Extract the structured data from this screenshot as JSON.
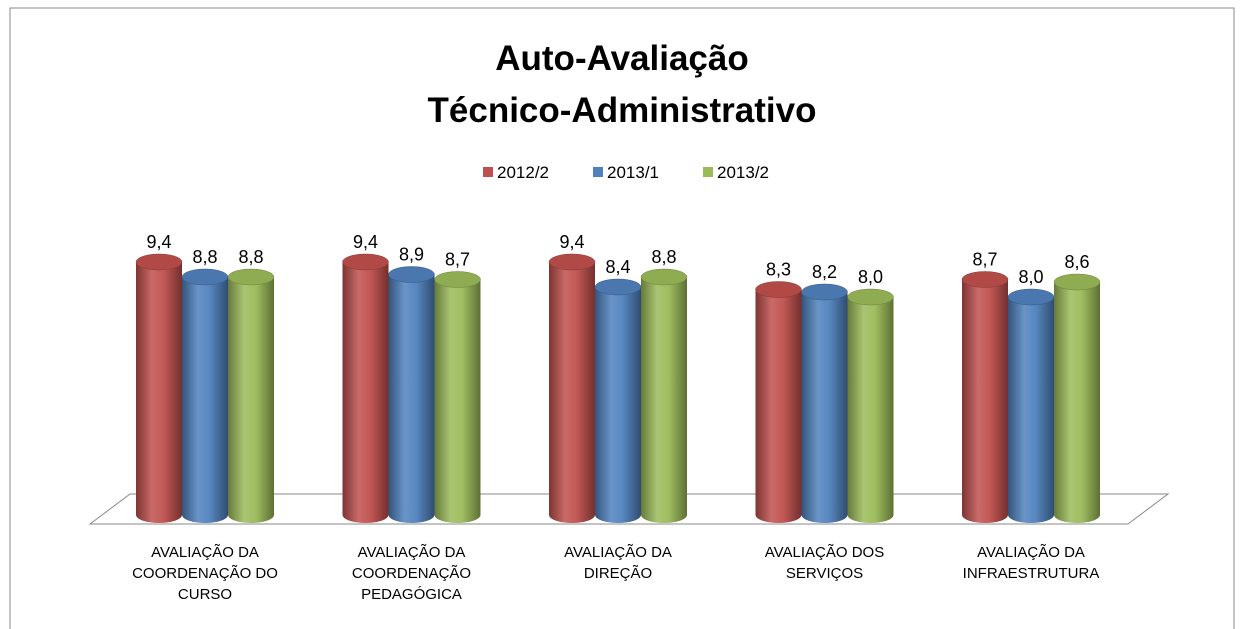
{
  "chart_data": {
    "type": "bar3d",
    "title": [
      "Auto-Avaliação",
      "Técnico-Administrativo"
    ],
    "categories": [
      "AVALIAÇÃO DA\nCOORDENAÇÃO DO\nCURSO",
      "AVALIAÇÃO DA\nCOORDENAÇÃO\nPEDAGÓGICA",
      "AVALIAÇÃO DA\nDIREÇÃO",
      "AVALIAÇÃO DOS\nSERVIÇOS",
      "AVALIAÇÃO DA\nINFRAESTRUTURA"
    ],
    "series": [
      {
        "name": "2012/2",
        "color": "#c0504d",
        "values": [
          9.4,
          9.4,
          9.4,
          8.3,
          8.7
        ],
        "value_labels": [
          "9,4",
          "9,4",
          "9,4",
          "8,3",
          "8,7"
        ]
      },
      {
        "name": "2013/1",
        "color": "#4f81bd",
        "values": [
          8.8,
          8.9,
          8.4,
          8.2,
          8.0
        ],
        "value_labels": [
          "8,8",
          "8,9",
          "8,4",
          "8,2",
          "8,0"
        ]
      },
      {
        "name": "2013/2",
        "color": "#9bbb59",
        "values": [
          8.8,
          8.7,
          8.8,
          8.0,
          8.6
        ],
        "value_labels": [
          "8,8",
          "8,7",
          "8,8",
          "8,0",
          "8,6"
        ]
      }
    ],
    "legend": "top"
  }
}
